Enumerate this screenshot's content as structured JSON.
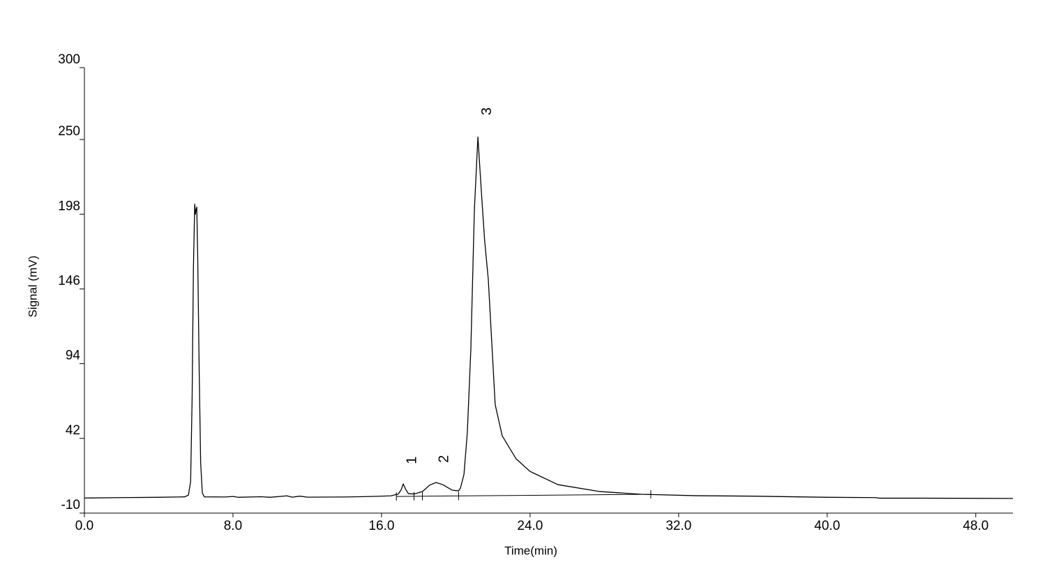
{
  "chart_data": {
    "type": "line",
    "x_label": "Time(min)",
    "y_label": "Signal (mV)",
    "xlim": [
      0,
      50
    ],
    "ylim": [
      -10,
      300
    ],
    "xticks": [
      {
        "value": 0,
        "label": "0.0"
      },
      {
        "value": 8,
        "label": "8.0"
      },
      {
        "value": 16,
        "label": "16.0"
      },
      {
        "value": 24,
        "label": "24.0"
      },
      {
        "value": 32,
        "label": "32.0"
      },
      {
        "value": 40,
        "label": "40.0"
      },
      {
        "value": 48,
        "label": "48.0"
      }
    ],
    "yticks": [
      -10,
      42,
      94,
      146,
      198,
      250,
      300
    ],
    "color": "#000000",
    "x": [
      0,
      2,
      4,
      5.4,
      5.6,
      5.72,
      5.8,
      5.87,
      5.94,
      5.98,
      6.01,
      6.05,
      6.1,
      6.18,
      6.26,
      6.35,
      6.46,
      7.6,
      8.0,
      8.3,
      9.5,
      10,
      10.9,
      11.2,
      11.6,
      12,
      14,
      15.5,
      16.5,
      16.9,
      17.05,
      17.17,
      17.3,
      17.45,
      17.75,
      18.2,
      18.6,
      18.93,
      19.3,
      19.8,
      20.15,
      20.25,
      20.44,
      20.62,
      20.81,
      21.0,
      21.19,
      21.37,
      21.55,
      21.75,
      22.12,
      22.5,
      23.25,
      24.0,
      25.5,
      27.76,
      30.0,
      33.0,
      36,
      40,
      42.6,
      42.8,
      45,
      50
    ],
    "values": [
      0.5,
      0.8,
      1.0,
      1.3,
      2.5,
      12,
      70,
      160,
      205,
      198,
      201,
      203,
      170,
      90,
      25,
      4,
      1.3,
      1.2,
      1.6,
      1.0,
      1.4,
      1.0,
      2,
      1.1,
      1.8,
      1.1,
      1.2,
      1.6,
      2.0,
      3.2,
      6,
      10.3,
      6.5,
      3.5,
      3.3,
      5,
      9.5,
      11.3,
      9.8,
      6,
      5.5,
      7.4,
      17,
      46,
      104,
      201,
      251.7,
      215,
      180,
      152.5,
      65.5,
      43.7,
      27.7,
      19,
      9.8,
      5,
      3.1,
      2.1,
      1.8,
      1.0,
      0.8,
      0.4,
      0.4,
      0.2
    ],
    "integration_baseline": {
      "x": [
        16.8,
        30.5
      ],
      "values": [
        1.6,
        3.1
      ]
    },
    "integration_events": [
      16.8,
      17.75,
      18.2,
      20.15,
      30.5
    ],
    "annotations": [
      {
        "text": "1",
        "x": 17.66,
        "y": 26.8
      },
      {
        "text": "2",
        "x": 19.4,
        "y": 27.7
      },
      {
        "text": "3",
        "x": 21.7,
        "y": 269.6
      }
    ]
  }
}
